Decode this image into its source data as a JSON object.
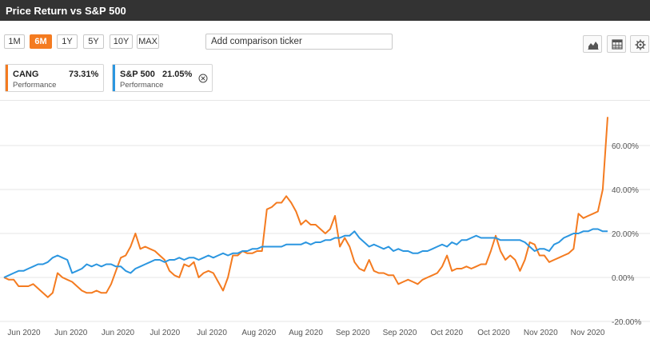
{
  "header": {
    "title": "Price Return vs S&P 500"
  },
  "toolbar": {
    "ranges": [
      "1M",
      "6M",
      "1Y",
      "5Y",
      "10Y",
      "MAX"
    ],
    "active_range": "6M",
    "search_placeholder": "Add comparison ticker",
    "icons": [
      "area-chart-icon",
      "table-icon",
      "gear-icon"
    ]
  },
  "cards": [
    {
      "ticker": "CANG",
      "value": "73.31%",
      "label": "Performance",
      "color": "#f47b20"
    },
    {
      "ticker": "S&P 500",
      "value": "21.05%",
      "label": "Performance",
      "color": "#2b96e0"
    }
  ],
  "chart_data": {
    "type": "line",
    "y_ticks": [
      "60.00%",
      "40.00%",
      "20.00%",
      "0.00%",
      "-20.00%"
    ],
    "ylim": [
      -20,
      75
    ],
    "x_ticks": [
      "Jun 2020",
      "Jun 2020",
      "Jun 2020",
      "Jul 2020",
      "Jul 2020",
      "Aug 2020",
      "Aug 2020",
      "Sep 2020",
      "Sep 2020",
      "Oct 2020",
      "Oct 2020",
      "Nov 2020",
      "Nov 2020"
    ],
    "grid": true,
    "series": [
      {
        "name": "CANG",
        "color": "#f47b20",
        "values": [
          0,
          -1,
          -1,
          -4,
          -4,
          -4,
          -3,
          -5,
          -7,
          -9,
          -7,
          2,
          0,
          -1,
          -2,
          -4,
          -6,
          -7,
          -7,
          -6,
          -7,
          -7,
          -3,
          3,
          9,
          10,
          14,
          20,
          13,
          14,
          13,
          12,
          10,
          8,
          3,
          1,
          0,
          6,
          5,
          7,
          0,
          2,
          3,
          2,
          -2,
          -6,
          0,
          10,
          10,
          12,
          11,
          11,
          12,
          12,
          31,
          32,
          34,
          34,
          37,
          34,
          30,
          24,
          26,
          24,
          24,
          22,
          20,
          22,
          28,
          14,
          18,
          14,
          7,
          4,
          3,
          8,
          3,
          2,
          2,
          1,
          1,
          -3,
          -2,
          -1,
          -2,
          -3,
          -1,
          0,
          1,
          2,
          5,
          10,
          3,
          4,
          4,
          5,
          4,
          5,
          6,
          6,
          12,
          19,
          12,
          8,
          10,
          8,
          3,
          8,
          16,
          15,
          10,
          10,
          7,
          8,
          9,
          10,
          11,
          13,
          29,
          27,
          28,
          29,
          30,
          40,
          73
        ]
      },
      {
        "name": "S&P 500",
        "color": "#2b96e0",
        "values": [
          0,
          1,
          2,
          3,
          3,
          4,
          5,
          6,
          6,
          7,
          9,
          10,
          9,
          8,
          2,
          3,
          4,
          6,
          5,
          6,
          5,
          6,
          6,
          5,
          5,
          3,
          2,
          4,
          5,
          6,
          7,
          8,
          8,
          7,
          8,
          8,
          9,
          8,
          9,
          9,
          8,
          9,
          10,
          9,
          10,
          11,
          10,
          11,
          11,
          12,
          12,
          13,
          13,
          14,
          14,
          14,
          14,
          14,
          15,
          15,
          15,
          15,
          16,
          15,
          16,
          16,
          17,
          17,
          18,
          18,
          19,
          19,
          21,
          18,
          16,
          14,
          15,
          14,
          13,
          14,
          12,
          13,
          12,
          12,
          11,
          11,
          12,
          12,
          13,
          14,
          15,
          14,
          16,
          15,
          17,
          17,
          18,
          19,
          18,
          18,
          18,
          18,
          17,
          17,
          17,
          17,
          17,
          16,
          14,
          12,
          13,
          13,
          12,
          15,
          16,
          18,
          19,
          20,
          20,
          21,
          21,
          22,
          22,
          21,
          21
        ]
      }
    ]
  }
}
